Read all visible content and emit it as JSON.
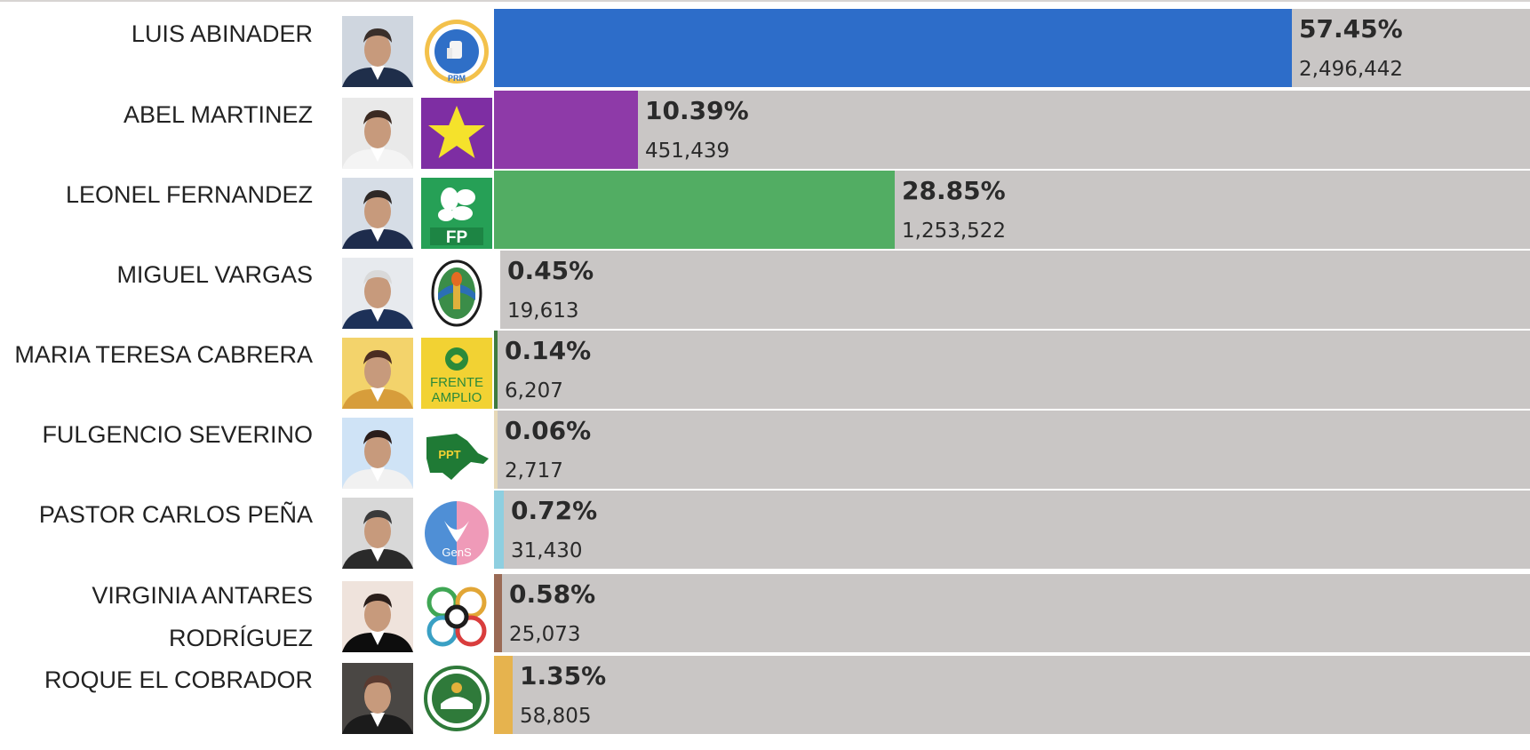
{
  "chart_data": {
    "type": "bar",
    "orientation": "horizontal",
    "xlim": [
      0,
      64
    ],
    "rows": [
      {
        "name_lines": [
          "LUIS ABINADER"
        ],
        "percent": "57.45%",
        "value": 57.45,
        "votes": "2,496,442",
        "color": "#2d6dc9",
        "photo": "candidate-photo",
        "logo": "prm-party-logo",
        "logo_text": "PRM"
      },
      {
        "name_lines": [
          "ABEL MARTINEZ"
        ],
        "percent": "10.39%",
        "value": 10.39,
        "votes": "451,439",
        "color": "#8e3aa8",
        "photo": "candidate-photo",
        "logo": "pld-star-logo",
        "logo_text": ""
      },
      {
        "name_lines": [
          "LEONEL FERNANDEZ"
        ],
        "percent": "28.85%",
        "value": 28.85,
        "votes": "1,253,522",
        "color": "#52ad63",
        "photo": "candidate-photo",
        "logo": "fp-party-logo",
        "logo_text": "FP"
      },
      {
        "name_lines": [
          "MIGUEL VARGAS"
        ],
        "percent": "0.45%",
        "value": 0.45,
        "votes": "19,613",
        "color": "#ffffff",
        "photo": "candidate-photo",
        "logo": "prd-party-logo",
        "logo_text": ""
      },
      {
        "name_lines": [
          "MARIA TERESA CABRERA"
        ],
        "percent": "0.14%",
        "value": 0.14,
        "votes": "6,207",
        "color": "#3f7a3f",
        "photo": "candidate-photo",
        "logo": "frente-amplio-logo",
        "logo_text": "FRENTE AMPLIO"
      },
      {
        "name_lines": [
          "FULGENCIO SEVERINO"
        ],
        "percent": "0.06%",
        "value": 0.06,
        "votes": "2,717",
        "color": "#e7d9b8",
        "photo": "candidate-photo",
        "logo": "ppt-party-logo",
        "logo_text": "PPT"
      },
      {
        "name_lines": [
          "PASTOR CARLOS PEÑA"
        ],
        "percent": "0.72%",
        "value": 0.72,
        "votes": "31,430",
        "color": "#8ecfe0",
        "photo": "candidate-photo",
        "logo": "gens-party-logo",
        "logo_text": "GenS"
      },
      {
        "name_lines": [
          "VIRGINIA ANTARES",
          "RODRÍGUEZ"
        ],
        "percent": "0.58%",
        "value": 0.58,
        "votes": "25,073",
        "color": "#9a6a55",
        "photo": "candidate-photo",
        "logo": "opcion-democratica-logo",
        "logo_text": ""
      },
      {
        "name_lines": [
          "ROQUE EL COBRADOR"
        ],
        "percent": "1.35%",
        "value": 1.35,
        "votes": "58,805",
        "color": "#e6b34e",
        "photo": "candidate-photo",
        "logo": "jpm-party-logo",
        "logo_text": ""
      }
    ]
  }
}
